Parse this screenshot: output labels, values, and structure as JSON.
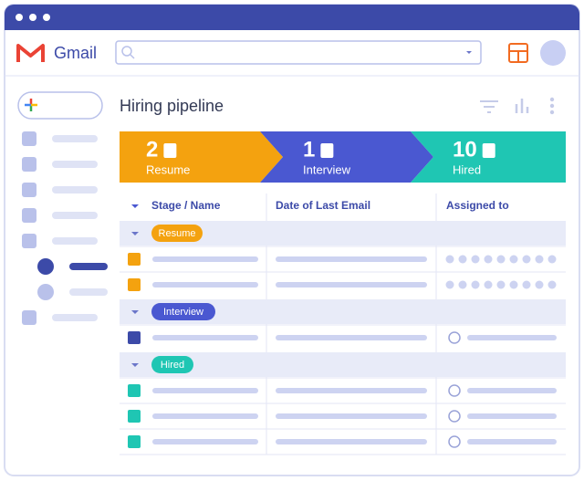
{
  "app": {
    "name": "Gmail"
  },
  "page": {
    "title": "Hiring pipeline"
  },
  "pipeline": [
    {
      "count": 2,
      "label": "Resume"
    },
    {
      "count": 1,
      "label": "Interview"
    },
    {
      "count": 10,
      "label": "Hired"
    }
  ],
  "table": {
    "columns": [
      "Stage / Name",
      "Date of Last Email",
      "Assigned to"
    ],
    "groups": [
      {
        "label": "Resume"
      },
      {
        "label": "Interview"
      },
      {
        "label": "Hired"
      }
    ]
  }
}
